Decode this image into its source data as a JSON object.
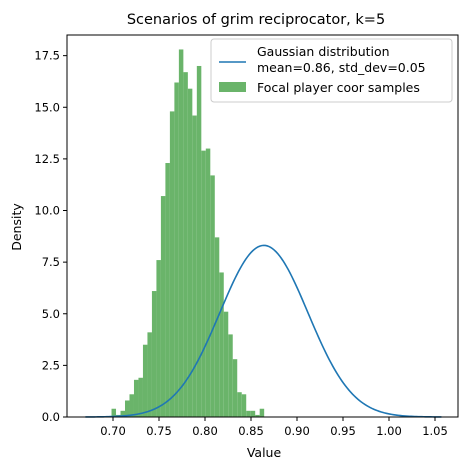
{
  "chart_data": {
    "type": "bar",
    "title": "Scenarios of grim reciprocator, k=5",
    "xlabel": "Value",
    "ylabel": "Density",
    "xlim": [
      0.65,
      1.075
    ],
    "ylim": [
      0,
      18.5
    ],
    "xticks": [
      "0.70",
      "0.75",
      "0.80",
      "0.85",
      "0.90",
      "0.95",
      "1.00",
      "1.05"
    ],
    "yticks": [
      "0.0",
      "2.5",
      "5.0",
      "7.5",
      "10.0",
      "12.5",
      "15.0",
      "17.5"
    ],
    "grid": false,
    "legend_position": "upper-right",
    "colors": {
      "histogram": "#6ab46a",
      "curve": "#1f77b4"
    },
    "histogram": {
      "name": "Focal player coor samples",
      "bin_start": 0.6984,
      "bin_width": 0.00488,
      "values": [
        0.4,
        0.1,
        0.3,
        0.8,
        1.1,
        1.8,
        1.9,
        3.5,
        4.1,
        6.1,
        7.6,
        10.7,
        12.3,
        14.8,
        16.2,
        17.8,
        16.7,
        15.9,
        14.6,
        17.0,
        12.9,
        13.0,
        11.7,
        8.7,
        7.0,
        5.1,
        4.0,
        2.8,
        1.2,
        1.1,
        0.3,
        0.3,
        0.1,
        0.4
      ]
    },
    "curve": {
      "name": "Gaussian distribution\nmean=0.86, std_dev=0.05",
      "label_line1": "Gaussian distribution",
      "label_line2": "mean=0.86, std_dev=0.05",
      "mean": 0.864,
      "std_dev": 0.048,
      "x_range": [
        0.67,
        1.057
      ]
    }
  }
}
